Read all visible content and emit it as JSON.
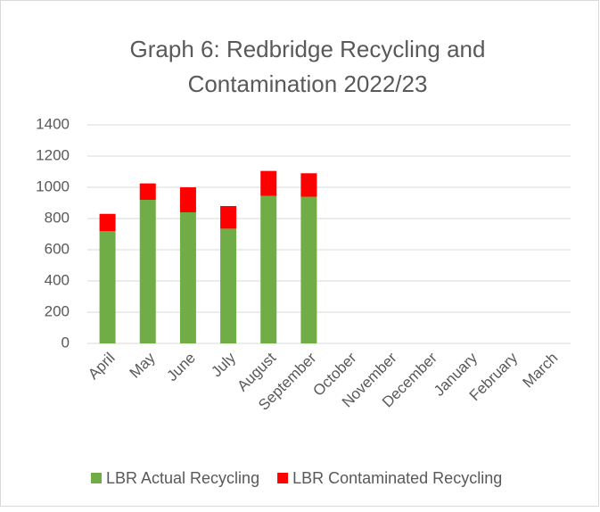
{
  "chart_data": {
    "type": "stacked_bar",
    "title": [
      "Graph 6: Redbridge Recycling and",
      "Contamination 2022/23"
    ],
    "categories": [
      "April",
      "May",
      "June",
      "July",
      "August",
      "September",
      "October",
      "November",
      "December",
      "January",
      "February",
      "March"
    ],
    "series": [
      {
        "name": "LBR Actual Recycling",
        "color": "#70ad47",
        "values": [
          720,
          920,
          840,
          735,
          945,
          940,
          null,
          null,
          null,
          null,
          null,
          null
        ]
      },
      {
        "name": "LBR Contaminated Recycling",
        "color": "#ff0000",
        "values": [
          110,
          105,
          160,
          145,
          160,
          150,
          null,
          null,
          null,
          null,
          null,
          null
        ]
      }
    ],
    "ylim": [
      0,
      1400
    ],
    "yticks": [
      0,
      200,
      400,
      600,
      800,
      1000,
      1200,
      1400
    ],
    "grid": true,
    "legend": "bottom"
  }
}
